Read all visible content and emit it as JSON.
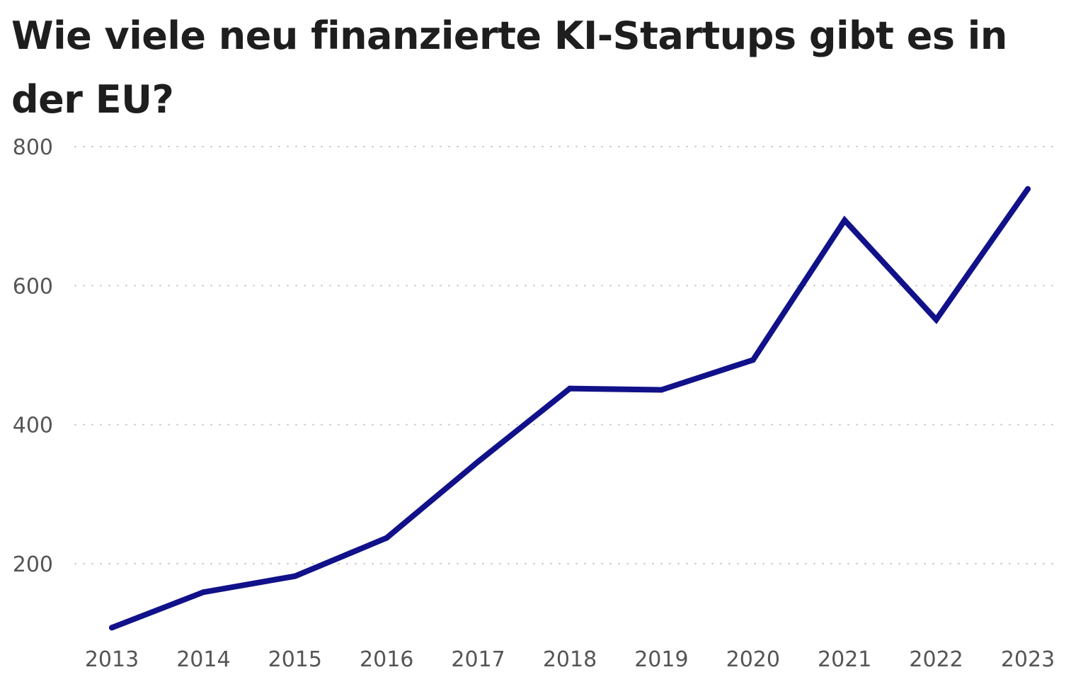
{
  "chart_data": {
    "type": "line",
    "title": "Wie viele neu finanzierte KI-Startups gibt es in der EU?",
    "xlabel": "",
    "ylabel": "",
    "x": [
      "2013",
      "2014",
      "2015",
      "2016",
      "2017",
      "2018",
      "2019",
      "2020",
      "2021",
      "2022",
      "2023"
    ],
    "series": [
      {
        "values": [
          108,
          159,
          182,
          237,
          347,
          452,
          450,
          493,
          694,
          551,
          739
        ]
      }
    ],
    "ylim": [
      0,
      800
    ],
    "yticks": [
      200,
      400,
      600,
      800
    ],
    "grid": true,
    "legend": "none",
    "colors": {
      "line": "#11118a",
      "grid": "#c8c8c8",
      "tick_text": "#555555",
      "title_text": "#1e1e1e"
    }
  }
}
